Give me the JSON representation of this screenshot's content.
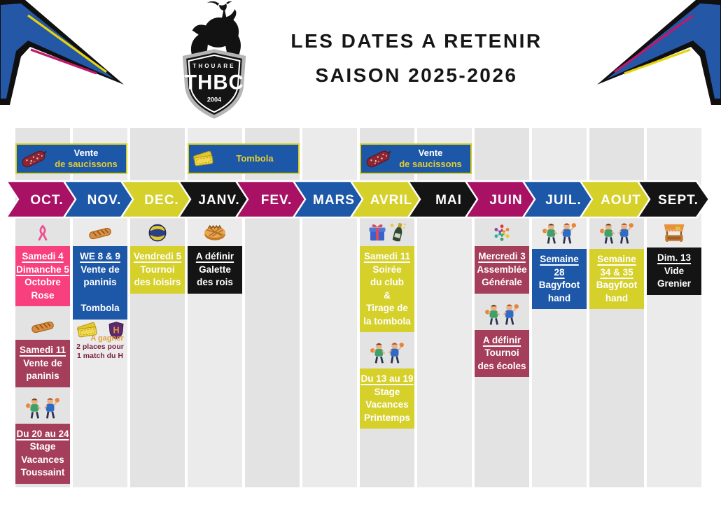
{
  "header": {
    "title_line1": "LES DATES A RETENIR",
    "title_line2": "SAISON 2025-2026",
    "logo": {
      "city": "THOUARE",
      "acronym": "THBC",
      "year": "2004"
    }
  },
  "colors": {
    "magenta": "#a81164",
    "blue": "#1c57a8",
    "yellow": "#d6d02b",
    "black": "#141414",
    "pink": "#f9407e",
    "crimson": "#a43e5b",
    "strip_dark": "#e3e3e3",
    "strip_light": "#ebebeb",
    "banner_bg": "#1c57a8",
    "banner_border": "#d6d02b",
    "banner_text_yellow": "#e5ce2f",
    "banner_text_white": "#ffffff",
    "note_orange": "#dfa13a",
    "note_maroon": "#7a1f3d"
  },
  "banners": [
    {
      "icon": "saucisson",
      "col_start": 0,
      "col_span": 2,
      "lines": [
        {
          "text": "Vente",
          "color": "white"
        },
        {
          "text": "de saucissons",
          "color": "yellow"
        }
      ]
    },
    {
      "icon": "ticket",
      "col_start": 3,
      "col_span": 2,
      "lines": [
        {
          "text": "Tombola",
          "color": "yellow"
        }
      ]
    },
    {
      "icon": "saucisson",
      "col_start": 6,
      "col_span": 2,
      "lines": [
        {
          "text": "Vente",
          "color": "white"
        },
        {
          "text": "de saucissons",
          "color": "yellow"
        }
      ]
    }
  ],
  "months": [
    {
      "label": "OCT.",
      "color": "magenta",
      "events": [
        {
          "icons": [
            "ribbon"
          ],
          "card": "pink",
          "lines": [
            {
              "text": "Samedi 4",
              "u": true
            },
            {
              "text": "Dimanche 5",
              "u": true
            },
            {
              "text": "Octobre"
            },
            {
              "text": "Rose"
            }
          ]
        },
        {
          "icons": [
            "baguette"
          ],
          "card": "crimson",
          "lines": [
            {
              "text": "Samedi 11",
              "u": true
            },
            {
              "text": "Vente de"
            },
            {
              "text": "paninis"
            }
          ]
        },
        {
          "icons": [
            "kids"
          ],
          "card": "crimson",
          "lines": [
            {
              "text": "Du 20 au 24",
              "u": true
            },
            {
              "text": "Stage"
            },
            {
              "text": "Vacances"
            },
            {
              "text": "Toussaint"
            }
          ]
        }
      ]
    },
    {
      "label": "NOV.",
      "color": "blue",
      "events": [
        {
          "icons": [
            "baguette"
          ],
          "card": "blue",
          "lines": [
            {
              "text": "WE 8 & 9",
              "u": true
            },
            {
              "text": "Vente de"
            },
            {
              "text": "paninis"
            },
            {
              "text": ""
            },
            {
              "text": "Tombola"
            }
          ]
        },
        {
          "icons": [
            "ticket",
            "h-shield"
          ],
          "note": [
            {
              "text": "A gagner",
              "style": "orange"
            },
            {
              "text": "2 places pour",
              "style": "maroon"
            },
            {
              "text": "1 match du H",
              "style": "maroon"
            }
          ]
        }
      ]
    },
    {
      "label": "DEC.",
      "color": "yellow",
      "events": [
        {
          "icons": [
            "handball"
          ],
          "card": "yellow",
          "lines": [
            {
              "text": "Vendredi 5",
              "u": true
            },
            {
              "text": "Tournoi"
            },
            {
              "text": "des loisirs"
            }
          ]
        }
      ]
    },
    {
      "label": "JANV.",
      "color": "black",
      "events": [
        {
          "icons": [
            "galette"
          ],
          "card": "black",
          "lines": [
            {
              "text": "A définir",
              "u": true
            },
            {
              "text": "Galette"
            },
            {
              "text": "des rois"
            }
          ]
        }
      ]
    },
    {
      "label": "FEV.",
      "color": "magenta",
      "events": []
    },
    {
      "label": "MARS",
      "color": "blue",
      "events": []
    },
    {
      "label": "AVRIL",
      "color": "yellow",
      "events": [
        {
          "icons": [
            "gift",
            "champagne"
          ],
          "card": "yellow",
          "lines": [
            {
              "text": "Samedi 11",
              "u": true
            },
            {
              "text": "Soirée"
            },
            {
              "text": "du club"
            },
            {
              "text": "&"
            },
            {
              "text": "Tirage de"
            },
            {
              "text": "la tombola"
            }
          ]
        },
        {
          "icons": [
            "kids"
          ],
          "card": "yellow",
          "lines": [
            {
              "text": "Du 13 au 19",
              "u": true
            },
            {
              "text": "Stage"
            },
            {
              "text": "Vacances"
            },
            {
              "text": "Printemps"
            }
          ]
        }
      ]
    },
    {
      "label": "MAI",
      "color": "black",
      "events": []
    },
    {
      "label": "JUIN",
      "color": "magenta",
      "events": [
        {
          "icons": [
            "assembly"
          ],
          "card": "crimson",
          "lines": [
            {
              "text": "Mercredi 3",
              "u": true
            },
            {
              "text": "Assemblée"
            },
            {
              "text": "Générale"
            }
          ]
        },
        {
          "icons": [
            "kids"
          ],
          "card": "crimson",
          "lines": [
            {
              "text": "A définir",
              "u": true
            },
            {
              "text": "Tournoi"
            },
            {
              "text": "des écoles"
            }
          ]
        }
      ]
    },
    {
      "label": "JUIL.",
      "color": "blue",
      "events": [
        {
          "icons": [
            "kids"
          ],
          "card": "blue",
          "lines": [
            {
              "text": "Semaine",
              "u": true
            },
            {
              "text": "28",
              "u": true
            },
            {
              "text": "Bagyfoot"
            },
            {
              "text": "hand"
            }
          ]
        }
      ]
    },
    {
      "label": "AOUT",
      "color": "yellow",
      "events": [
        {
          "icons": [
            "kids"
          ],
          "card": "yellow",
          "lines": [
            {
              "text": "Semaine",
              "u": true
            },
            {
              "text": "34 & 35",
              "u": true
            },
            {
              "text": "Bagyfoot"
            },
            {
              "text": "hand"
            }
          ]
        }
      ]
    },
    {
      "label": "SEPT.",
      "color": "black",
      "events": [
        {
          "icons": [
            "stall"
          ],
          "card": "black",
          "lines": [
            {
              "text": "Dim. 13",
              "u": true
            },
            {
              "text": "Vide"
            },
            {
              "text": "Grenier"
            }
          ]
        }
      ]
    }
  ]
}
